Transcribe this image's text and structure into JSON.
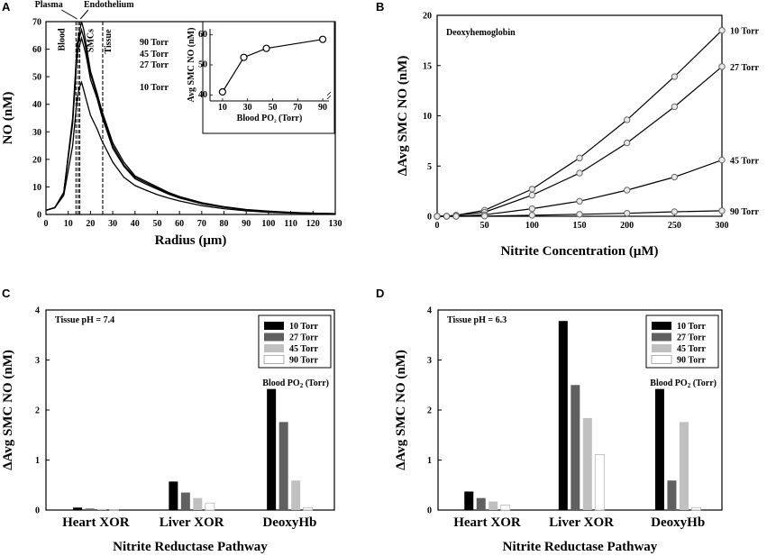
{
  "panels": {
    "A": "A",
    "B": "B",
    "C": "C",
    "D": "D"
  },
  "chart_data": [
    {
      "id": "A",
      "type": "line",
      "xlabel": "Radius (μm)",
      "ylabel": "NO (nM)",
      "xlim": [
        0,
        130
      ],
      "ylim": [
        0,
        70
      ],
      "xticks": [
        0,
        10,
        20,
        30,
        40,
        50,
        60,
        70,
        80,
        90,
        100,
        110,
        120,
        130
      ],
      "yticks": [
        0,
        10,
        20,
        30,
        40,
        50,
        60,
        70
      ],
      "region_labels": {
        "blood": "Blood",
        "plasma": "Plasma",
        "smcs": "SMCs",
        "endothelium": "Endothelium",
        "tissue": "Tissue"
      },
      "region_bounds": [
        13.5,
        14.5,
        15.2,
        25.5
      ],
      "series": [
        {
          "name": "90 Torr",
          "x": [
            0,
            4,
            8,
            12,
            14,
            15,
            16,
            17,
            18,
            20,
            23,
            25,
            30,
            35,
            40,
            45,
            50,
            55,
            60,
            70,
            80,
            90,
            100,
            110,
            120,
            130
          ],
          "y": [
            1.5,
            2.5,
            8,
            35,
            62,
            66,
            70,
            67,
            62,
            52,
            44,
            38,
            26,
            19,
            14,
            12,
            10,
            8,
            6.5,
            4.3,
            2.8,
            1.8,
            1.2,
            0.8,
            0.5,
            0.3
          ]
        },
        {
          "name": "45 Torr",
          "x": [
            0,
            4,
            8,
            12,
            14,
            15,
            16,
            17,
            18,
            20,
            23,
            25,
            30,
            35,
            40,
            45,
            50,
            55,
            60,
            70,
            80,
            90,
            100,
            110,
            120,
            130
          ],
          "y": [
            1.5,
            2.5,
            8,
            34,
            60,
            64,
            67,
            64,
            60,
            51,
            43,
            37,
            25,
            18,
            13.5,
            11.5,
            9.6,
            7.7,
            6.2,
            4.1,
            2.7,
            1.7,
            1.1,
            0.7,
            0.5,
            0.3
          ]
        },
        {
          "name": "27 Torr",
          "x": [
            0,
            4,
            8,
            12,
            14,
            15,
            16,
            17,
            18,
            20,
            23,
            25,
            30,
            35,
            40,
            45,
            50,
            55,
            60,
            70,
            80,
            90,
            100,
            110,
            120,
            130
          ],
          "y": [
            1.5,
            2.5,
            8,
            33,
            58,
            61,
            64,
            61,
            58,
            49,
            42,
            36,
            24,
            17.5,
            13,
            11,
            9.2,
            7.4,
            6,
            3.9,
            2.6,
            1.6,
            1.0,
            0.7,
            0.4,
            0.3
          ]
        },
        {
          "name": "10 Torr",
          "x": [
            0,
            4,
            8,
            12,
            14,
            15,
            16,
            17,
            18,
            20,
            23,
            25,
            30,
            35,
            40,
            45,
            50,
            55,
            60,
            70,
            80,
            90,
            100,
            110,
            120,
            130
          ],
          "y": [
            1.5,
            2.5,
            7,
            25,
            42,
            46,
            48,
            45,
            42,
            36,
            31,
            27,
            19,
            13.5,
            10.5,
            8.8,
            7.2,
            6,
            4.9,
            3.2,
            2.1,
            1.3,
            0.8,
            0.5,
            0.3,
            0.2
          ]
        }
      ],
      "inset": {
        "type": "line",
        "xlabel": "Blood PO2 (Torr)",
        "ylabel": "Avg SMC NO (nM)",
        "xticks": [
          10,
          30,
          50,
          70,
          90
        ],
        "yticks": [
          40,
          50,
          60
        ],
        "ylim": [
          38,
          62
        ],
        "xlim": [
          0,
          95
        ],
        "x": [
          10,
          27,
          45,
          90
        ],
        "y": [
          41,
          52.5,
          55.5,
          58.5
        ]
      }
    },
    {
      "id": "B",
      "type": "line",
      "title": "Deoxyhemoglobin",
      "xlabel": "Nitrite Concentration (μM)",
      "ylabel": "ΔAvg SMC NO (nM)",
      "xlim": [
        0,
        300
      ],
      "ylim": [
        0,
        20
      ],
      "xticks": [
        0,
        50,
        100,
        150,
        200,
        250,
        300
      ],
      "yticks": [
        0,
        5,
        10,
        15,
        20
      ],
      "x": [
        0,
        10,
        20,
        50,
        100,
        150,
        200,
        250,
        300
      ],
      "series": [
        {
          "name": "10 Torr",
          "values": [
            0,
            0,
            0.1,
            0.6,
            2.7,
            5.8,
            9.6,
            13.9,
            18.5
          ]
        },
        {
          "name": "27 Torr",
          "values": [
            0,
            0,
            0.1,
            0.4,
            2.1,
            4.3,
            7.3,
            10.9,
            14.9
          ]
        },
        {
          "name": "45 Torr",
          "values": [
            0,
            0,
            0,
            0.15,
            0.75,
            1.5,
            2.6,
            3.9,
            5.6
          ]
        },
        {
          "name": "90 Torr",
          "values": [
            0,
            0,
            0,
            0.02,
            0.1,
            0.2,
            0.3,
            0.45,
            0.55
          ]
        }
      ]
    },
    {
      "id": "C",
      "type": "bar",
      "annotation": "Tissue pH = 7.4",
      "xlabel": "Nitrite Reductase Pathway",
      "ylabel": "ΔAvg SMC NO (nM)",
      "ylim": [
        0,
        4
      ],
      "yticks": [
        0,
        1,
        2,
        3,
        4
      ],
      "categories": [
        "Heart XOR",
        "Liver XOR",
        "DeoxyHb"
      ],
      "legend_title": "Blood PO2 (Torr)",
      "series": [
        {
          "name": "10 Torr",
          "color": "#000000",
          "values": [
            0.05,
            0.57,
            2.42
          ]
        },
        {
          "name": "27 Torr",
          "color": "#606060",
          "values": [
            0.03,
            0.35,
            1.76
          ]
        },
        {
          "name": "45 Torr",
          "color": "#c0c0c0",
          "values": [
            0.02,
            0.24,
            0.59
          ]
        },
        {
          "name": "90 Torr",
          "color": "#ffffff",
          "values": [
            0.01,
            0.14,
            0.05
          ]
        }
      ]
    },
    {
      "id": "D",
      "type": "bar",
      "annotation": "Tissue pH = 6.3",
      "xlabel": "Nitrite Reductase Pathway",
      "ylabel": "ΔAvg SMC NO (nM)",
      "ylim": [
        0,
        4
      ],
      "yticks": [
        0,
        1,
        2,
        3,
        4
      ],
      "categories": [
        "Heart XOR",
        "Liver XOR",
        "DeoxyHb"
      ],
      "legend_title": "Blood PO2 (Torr)",
      "series": [
        {
          "name": "10 Torr",
          "color": "#000000",
          "values": [
            0.37,
            3.78,
            2.42
          ]
        },
        {
          "name": "27 Torr",
          "color": "#606060",
          "values": [
            0.24,
            2.5,
            0.59
          ]
        },
        {
          "name": "45 Torr",
          "color": "#c0c0c0",
          "values": [
            0.17,
            1.84,
            1.76
          ]
        },
        {
          "name": "90 Torr",
          "color": "#ffffff",
          "values": [
            0.1,
            1.11,
            0.05
          ]
        }
      ]
    }
  ]
}
